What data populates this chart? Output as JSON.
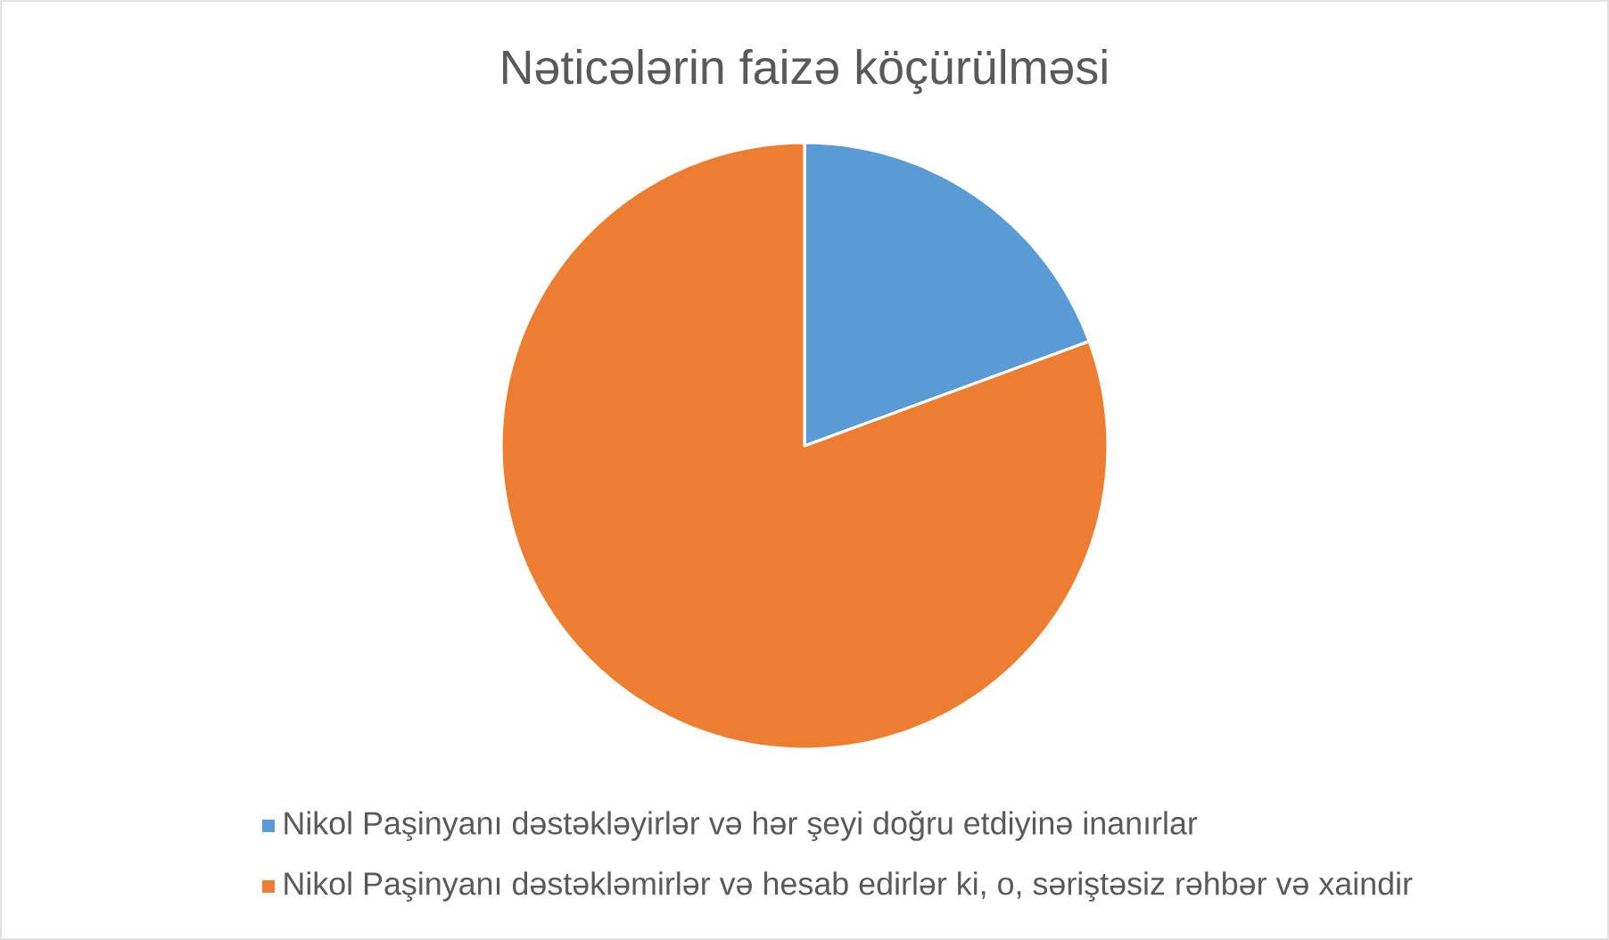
{
  "chart_data": {
    "type": "pie",
    "title": "Nəticələrin faizə köçürülməsi",
    "categories": [
      "Nikol Paşinyanı dəstəkləyirlər və hər şeyi doğru etdiyinə inanırlar",
      "Nikol Paşinyanı dəstəkləmirlər və hesab edirlər ki, o, səriştəsiz rəhbər və xaindir"
    ],
    "values": [
      19.4,
      80.6
    ],
    "colors": [
      "#5b9bd5",
      "#ed7d31"
    ],
    "legend": "bottom"
  }
}
